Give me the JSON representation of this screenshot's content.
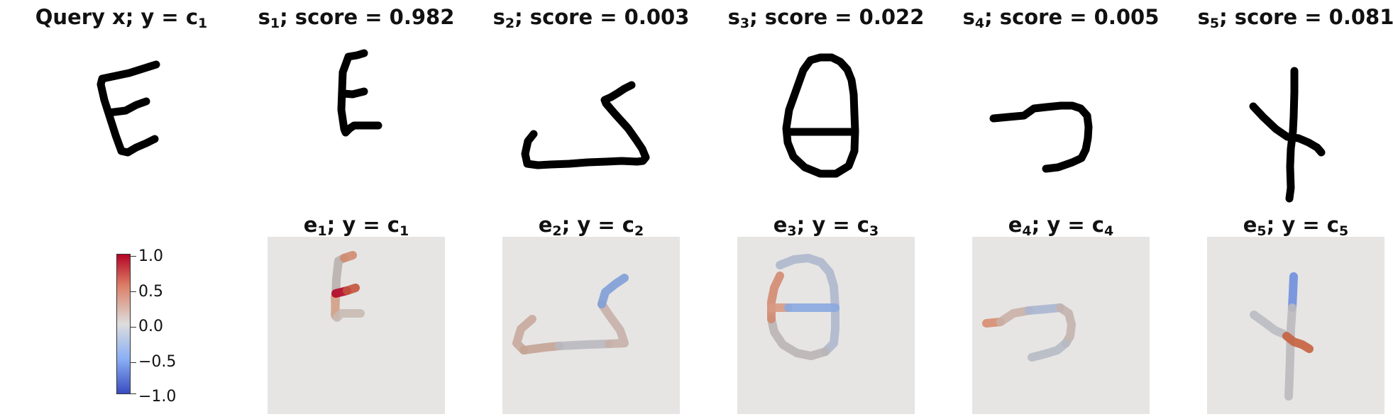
{
  "query": {
    "base": "Query x; y",
    "op": "=",
    "cls": "c",
    "idx": "1"
  },
  "samples": [
    {
      "s": "s",
      "idx": "1",
      "score_text": "; score = 0.982",
      "e": "e",
      "y": "; y",
      "op": "=",
      "cls": "c"
    },
    {
      "s": "s",
      "idx": "2",
      "score_text": "; score = 0.003",
      "e": "e",
      "y": "; y",
      "op": "=",
      "cls": "c"
    },
    {
      "s": "s",
      "idx": "3",
      "score_text": "; score = 0.022",
      "e": "e",
      "y": "; y",
      "op": "=",
      "cls": "c"
    },
    {
      "s": "s",
      "idx": "4",
      "score_text": "; score = 0.005",
      "e": "e",
      "y": "; y",
      "op": "=",
      "cls": "c"
    },
    {
      "s": "s",
      "idx": "5",
      "score_text": "; score = 0.081",
      "e": "e",
      "y": "; y",
      "op": "=",
      "cls": "c"
    }
  ],
  "colorbar": {
    "ticks": [
      "1.0",
      "0.5",
      "0.0",
      "−0.5",
      "−1.0"
    ],
    "range": [
      -1.0,
      1.0
    ],
    "colormap": "coolwarm",
    "colors": {
      "high": "#b40426",
      "mid": "#dddddd",
      "low": "#3b4cc0"
    }
  },
  "colors": {
    "ink": "#000000",
    "explanation_bg": "#e6e5e4"
  }
}
